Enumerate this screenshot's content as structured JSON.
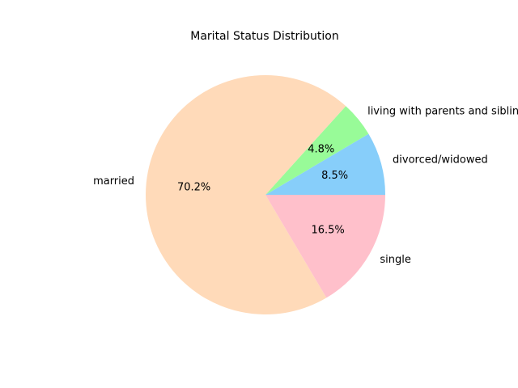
{
  "chart_data": {
    "type": "pie",
    "title": "Marital Status Distribution",
    "start_angle_deg": 0,
    "direction": "counterclockwise",
    "slices": [
      {
        "label": "divorced/widowed",
        "value": 8.5,
        "pct_text": "8.5%",
        "color": "#87cefa"
      },
      {
        "label": "living with parents and siblings",
        "value": 4.8,
        "pct_text": "4.8%",
        "color": "#98fb98"
      },
      {
        "label": "married",
        "value": 70.2,
        "pct_text": "70.2%",
        "color": "#ffdab9"
      },
      {
        "label": "single",
        "value": 16.5,
        "pct_text": "16.5%",
        "color": "#ffc0cb"
      }
    ]
  }
}
